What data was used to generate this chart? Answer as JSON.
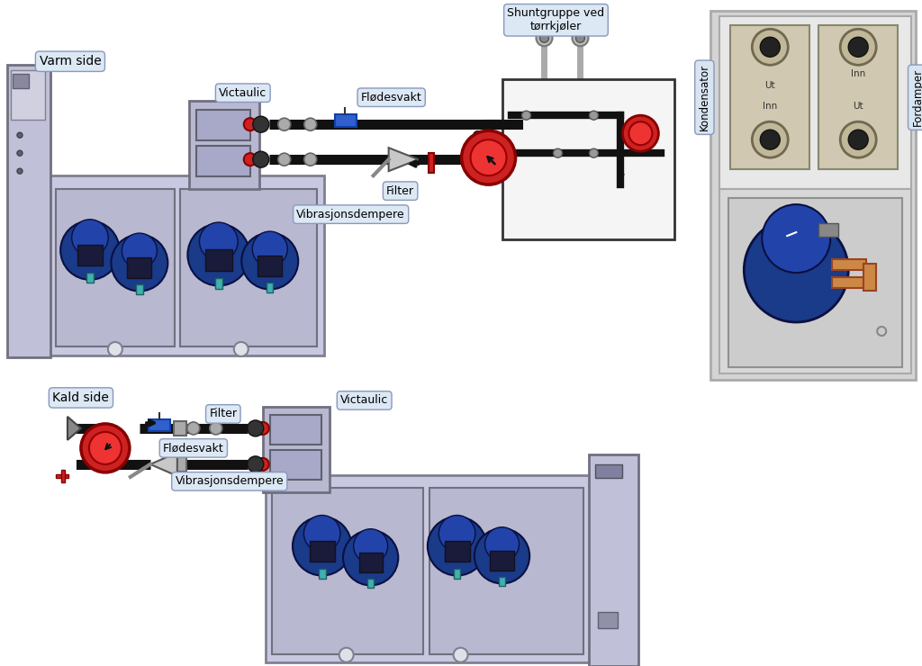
{
  "bg_color": "#ffffff",
  "labels": {
    "varm_side": "Varm side",
    "kald_side": "Kald side",
    "shuntgruppe": "Shuntgruppe ved\ntørrkjøler",
    "victaulic_top": "Victaulic",
    "flodesvakt_top": "Flødesvakt",
    "filter_top": "Filter",
    "vibrasjon_top": "Vibrasjonsdempere",
    "victaulic_bot": "Victaulic",
    "filter_bot": "Filter",
    "flodesvakt_bot": "Flødesvakt",
    "vibrasjon_bot": "Vibrasjonsdempere",
    "kondensator": "Kondensator",
    "fordamper": "Fordamper",
    "ut1": "Ut",
    "inn1": "Inn",
    "inn2": "Inn",
    "ut2": "Ut"
  },
  "colors": {
    "frame_bg": "#c8c8e0",
    "frame_border": "#808090",
    "compressor_blue": "#1a3a8a",
    "pipe_black": "#111111",
    "pipe_red": "#cc2222",
    "label_box_bg": "#dde8f5",
    "label_box_border": "#8899bb",
    "shunt_box_bg": "#ffffff",
    "shunt_box_border": "#333333",
    "right_frame_bg": "#d8d8d8",
    "right_inner_bg": "#e8e8e8",
    "heat_exch_bg": "#d0c8b0",
    "heat_exch_border": "#888870",
    "teal_pipe": "#40b0b0",
    "orange_accent": "#cc8844",
    "red_valve": "#cc2222",
    "dark_blue": "#0a2060",
    "light_gray": "#e0e0e8",
    "medium_gray": "#a0a0b0",
    "connector_gray": "#909090"
  }
}
